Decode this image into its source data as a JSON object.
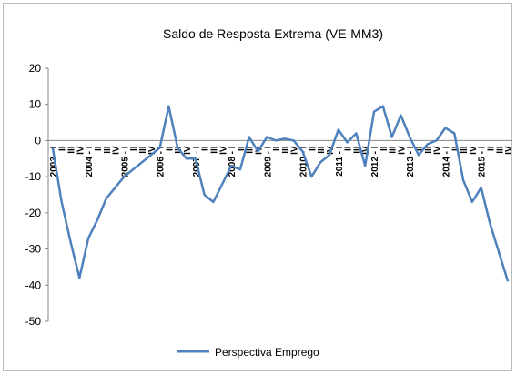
{
  "chart_data": {
    "type": "line",
    "title": "Saldo de Resposta Extrema (VE-MM3)",
    "categories": [
      "2003 - I",
      "II",
      "III",
      "IV",
      "2004 - I",
      "II",
      "III",
      "IV",
      "2005 - I",
      "II",
      "III",
      "IV",
      "2006 - I",
      "II",
      "III",
      "IV",
      "2007 - I",
      "II",
      "III",
      "IV",
      "2008 - I",
      "II",
      "III",
      "IV",
      "2009 - I",
      "II",
      "III",
      "IV",
      "2010 - I",
      "II",
      "III",
      "IV",
      "2011 - I",
      "II",
      "III",
      "IV",
      "2012 - I",
      "II",
      "III",
      "IV",
      "2013 - I",
      "II",
      "III",
      "IV",
      "2014 - I",
      "II",
      "III",
      "IV",
      "2015 - I",
      "II",
      "III",
      "IV"
    ],
    "series": [
      {
        "name": "Perspectiva Emprego",
        "color": "#4f81bd",
        "values": [
          -2,
          -17,
          -28,
          -38,
          -27,
          -22,
          -16,
          -13,
          -10,
          -8,
          -6,
          -4,
          -2,
          9.5,
          -2,
          -5,
          -5,
          -15,
          -17,
          -12,
          -7,
          -8,
          1,
          -3,
          1,
          0,
          0.5,
          0,
          -3,
          -10,
          -6,
          -4,
          3,
          -0.5,
          2,
          -7,
          8,
          9.5,
          1,
          7,
          1,
          -4,
          -1,
          0,
          3.5,
          2,
          -11,
          -17,
          -13,
          -23,
          -31,
          -39
        ]
      }
    ],
    "ylim": [
      -50,
      20
    ],
    "yticks": [
      20,
      10,
      0,
      -10,
      -20,
      -30,
      -40,
      -50
    ],
    "grid": false,
    "legend": "bottom"
  }
}
